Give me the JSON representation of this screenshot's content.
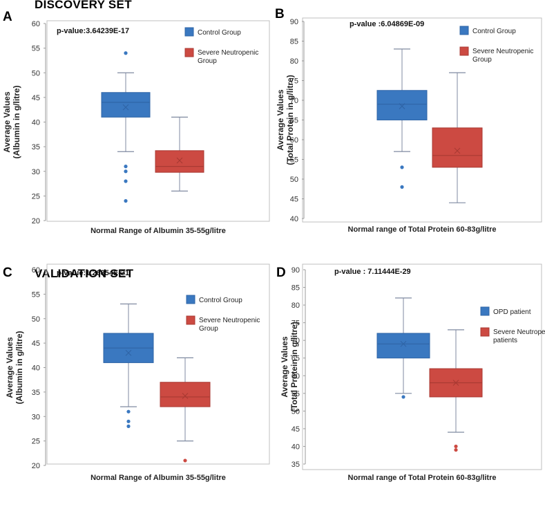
{
  "sets": {
    "discovery": "DISCOVERY SET",
    "validation": "VALIDATION SET"
  },
  "colors": {
    "control": "#3a78c0",
    "control_edge": "#2f64a6",
    "neutro": "#cc4a42",
    "neutro_edge": "#a93a33",
    "whisker": "#7f8aa0"
  },
  "chart_data": [
    {
      "letter": "A",
      "type": "boxplot",
      "pvalue": "p-value:3.64239E-17",
      "xlabel": "Normal Range of Albumin 35-55g/litre",
      "ylabel_line1": "Average Values",
      "ylabel_line2": "(Albumin in g/litre)",
      "ylim": [
        20,
        60
      ],
      "yticks": [
        20,
        25,
        30,
        35,
        40,
        45,
        50,
        55,
        60
      ],
      "legend": [
        "Control Group",
        "Severe Neutropenic Group"
      ],
      "series": [
        {
          "name": "Control Group",
          "min": 34,
          "q1": 41,
          "median": 44,
          "q3": 46,
          "max": 50,
          "mean": 43,
          "outliers": [
            54,
            31,
            30,
            28,
            24
          ]
        },
        {
          "name": "Severe Neutropenic Group",
          "min": 26,
          "q1": 29.8,
          "median": 31,
          "q3": 34.2,
          "max": 41,
          "mean": 32.2,
          "outliers": []
        }
      ]
    },
    {
      "letter": "B",
      "type": "boxplot",
      "pvalue": "p-value :6.04869E-09",
      "xlabel": "Normal range of Total Protein 60-83g/litre",
      "ylabel_line1": "Average Values",
      "ylabel_line2": "(Total Protein in g/litre)",
      "ylim": [
        40,
        90
      ],
      "yticks": [
        40,
        45,
        50,
        55,
        60,
        65,
        70,
        75,
        80,
        85,
        90
      ],
      "legend": [
        "Control Group",
        "Severe Neutropenic Group"
      ],
      "series": [
        {
          "name": "Control Group",
          "min": 57,
          "q1": 65,
          "median": 69,
          "q3": 72.5,
          "max": 83,
          "mean": 68.5,
          "outliers": [
            53,
            48
          ]
        },
        {
          "name": "Severe Neutropenic Group",
          "min": 44,
          "q1": 53,
          "median": 56,
          "q3": 63,
          "max": 77,
          "mean": 57.2,
          "outliers": []
        }
      ]
    },
    {
      "letter": "C",
      "type": "boxplot",
      "pvalue": "p-value:1.26854E-21",
      "xlabel": "Normal Range of Albumin 35-55g/litre",
      "ylabel_line1": "Average Values",
      "ylabel_line2": "(Albumin in g/litre)",
      "ylim": [
        20,
        60
      ],
      "yticks": [
        20,
        25,
        30,
        35,
        40,
        45,
        50,
        55,
        60
      ],
      "legend": [
        "Control Group",
        "Severe Neutropenic Group"
      ],
      "series": [
        {
          "name": "Control Group",
          "min": 32,
          "q1": 41,
          "median": 44,
          "q3": 47,
          "max": 53,
          "mean": 43,
          "outliers": [
            31,
            29,
            28
          ]
        },
        {
          "name": "Severe Neutropenic Group",
          "min": 25,
          "q1": 32,
          "median": 34,
          "q3": 37,
          "max": 42,
          "mean": 34.2,
          "outliers": [
            21
          ]
        }
      ]
    },
    {
      "letter": "D",
      "type": "boxplot",
      "pvalue": "p-value : 7.11444E-29",
      "xlabel": "Normal range of Total Protein 60-83g/litre",
      "ylabel_line1": "Average Values",
      "ylabel_line2": "(Total Protein in g/litre)",
      "ylim": [
        35,
        90
      ],
      "yticks": [
        35,
        40,
        45,
        50,
        55,
        60,
        65,
        70,
        75,
        80,
        85,
        90
      ],
      "legend": [
        "OPD patient",
        "Severe Neutropenic patients"
      ],
      "series": [
        {
          "name": "OPD patient",
          "min": 55,
          "q1": 65,
          "median": 69,
          "q3": 72,
          "max": 82,
          "mean": 69,
          "outliers": [
            54
          ]
        },
        {
          "name": "Severe Neutropenic patients",
          "min": 44,
          "q1": 54,
          "median": 58,
          "q3": 62,
          "max": 73,
          "mean": 58,
          "outliers": [
            40,
            39
          ]
        }
      ]
    }
  ]
}
